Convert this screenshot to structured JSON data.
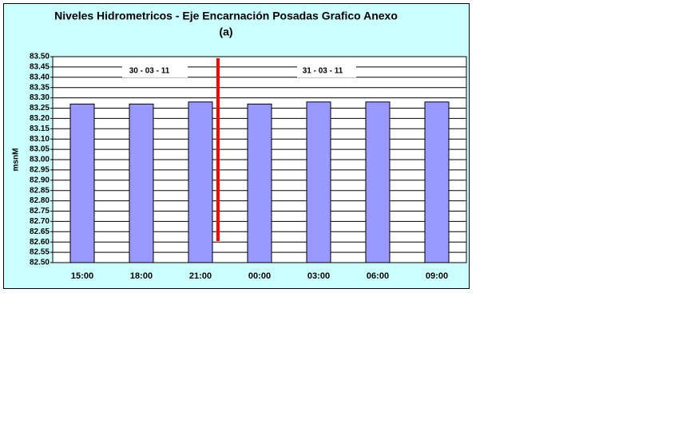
{
  "chart_data": {
    "type": "bar",
    "title": "Niveles Hidrometricos - Eje Encarnación Posadas Grafico Anexo",
    "subtitle": "(a)",
    "y_label": "msnM",
    "categories": [
      "15:00",
      "18:00",
      "21:00",
      "00:00",
      "03:00",
      "06:00",
      "09:00"
    ],
    "values": [
      83.27,
      83.27,
      83.28,
      83.27,
      83.28,
      83.28,
      83.28
    ],
    "color": "#9999ff",
    "ylim": [
      82.5,
      83.5
    ],
    "yticks": [
      {
        "value": 82.5,
        "label": "82.50"
      },
      82.55,
      {
        "value": 82.6,
        "label": "82.60"
      },
      82.65,
      {
        "value": 82.7,
        "label": "82.70"
      },
      82.75,
      {
        "value": 82.8,
        "label": "82.80"
      },
      82.85,
      {
        "value": 82.9,
        "label": "82.90"
      },
      82.95,
      {
        "value": 83.0,
        "label": "83.00"
      },
      83.05,
      {
        "value": 83.1,
        "label": "83.10"
      },
      83.15,
      {
        "value": 83.2,
        "label": "83.20"
      },
      83.25,
      {
        "value": 83.3,
        "label": "83.30"
      },
      83.35,
      {
        "value": 83.4,
        "label": "83.40"
      },
      83.45,
      {
        "value": 83.5,
        "label": "83.50"
      }
    ],
    "grid": true,
    "annotations": [
      "30 - 03 - 11",
      "31 - 03 - 11"
    ]
  }
}
